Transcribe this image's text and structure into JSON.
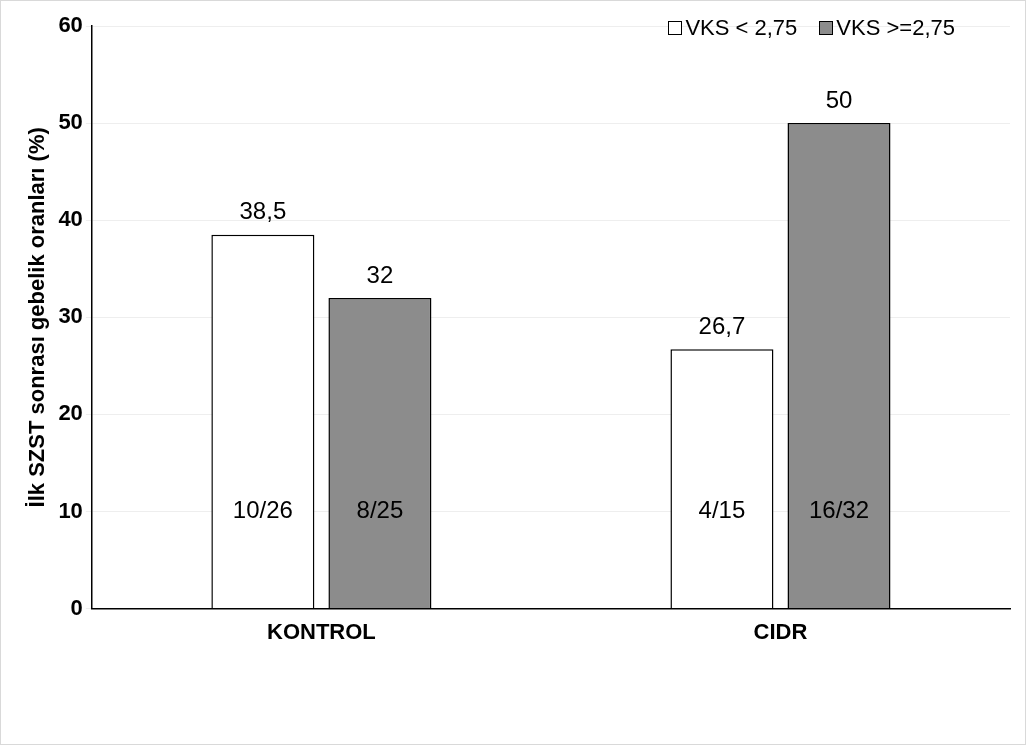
{
  "chart_data": {
    "type": "bar",
    "ylabel": "İlk SZST sonrası gebelik oranları (%)",
    "categories": [
      "KONTROL",
      "CIDR"
    ],
    "series": [
      {
        "name": "VKS < 2,75",
        "color": "#ffffff",
        "values": [
          38.5,
          26.7
        ],
        "value_labels": [
          "38,5",
          "26,7"
        ]
      },
      {
        "name": "VKS >=2,75",
        "color": "#8c8c8c",
        "values": [
          32,
          50
        ],
        "value_labels": [
          "32",
          "50"
        ]
      }
    ],
    "ylim": [
      0,
      60
    ],
    "yticks": [
      0,
      10,
      20,
      30,
      40,
      50,
      60
    ],
    "grid": "y",
    "legend": "top right",
    "annotations": [
      "10/26",
      "8/25",
      "4/15",
      "16/32"
    ]
  }
}
